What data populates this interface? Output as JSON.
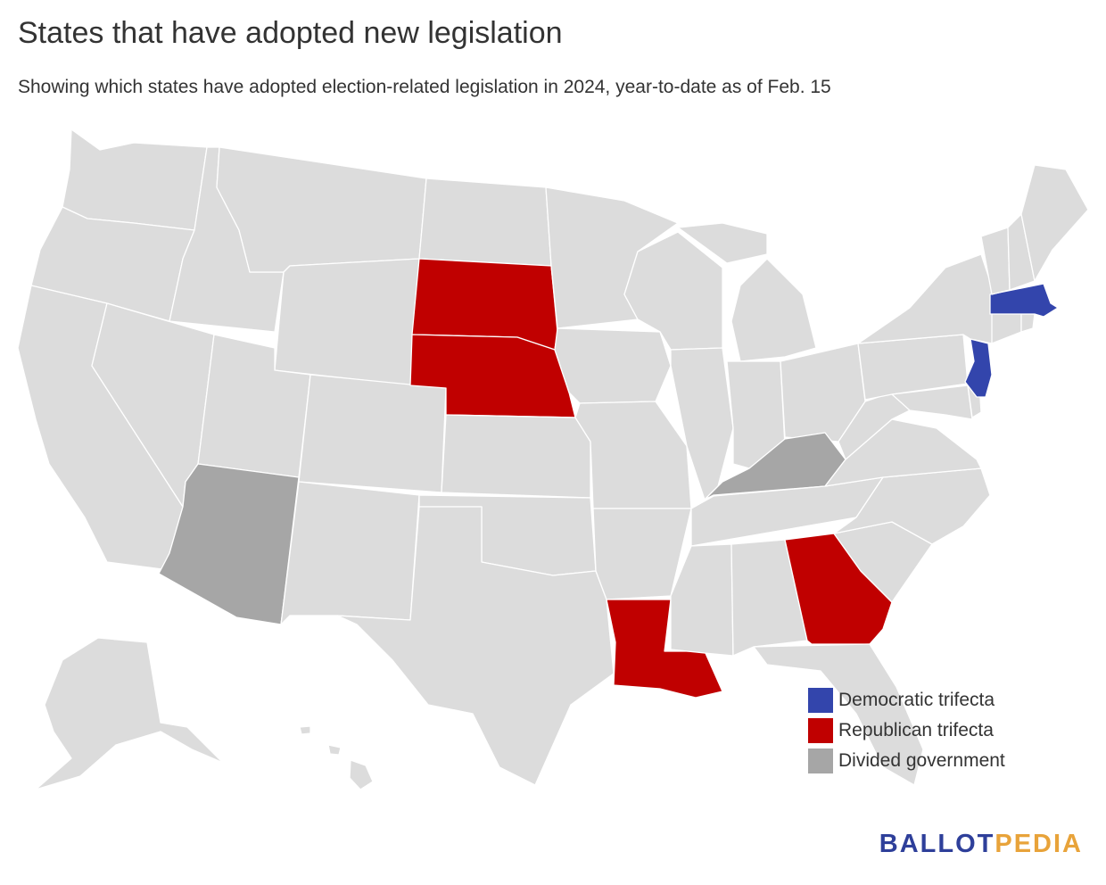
{
  "title": "States that have adopted new legislation",
  "subtitle": "Showing which states have adopted election-related legislation in 2024, year-to-date as of Feb. 15",
  "colors": {
    "default": "#dcdcdc",
    "democratic": "#3345ac",
    "republican": "#c00000",
    "divided": "#a6a6a6",
    "brand_blue": "#2e3f9a",
    "brand_orange": "#e8a33a"
  },
  "legend": [
    {
      "label": "Democratic trifecta",
      "color": "#3345ac"
    },
    {
      "label": "Republican trifecta",
      "color": "#c00000"
    },
    {
      "label": "Divided government",
      "color": "#a6a6a6"
    }
  ],
  "highlighted_states": {
    "Massachusetts": "democratic",
    "New Jersey": "democratic",
    "South Dakota": "republican",
    "Nebraska": "republican",
    "Georgia": "republican",
    "Louisiana": "republican",
    "Arizona": "divided",
    "Kentucky": "divided"
  },
  "brand": {
    "part1": "BALLOT",
    "part2": "PEDIA"
  }
}
